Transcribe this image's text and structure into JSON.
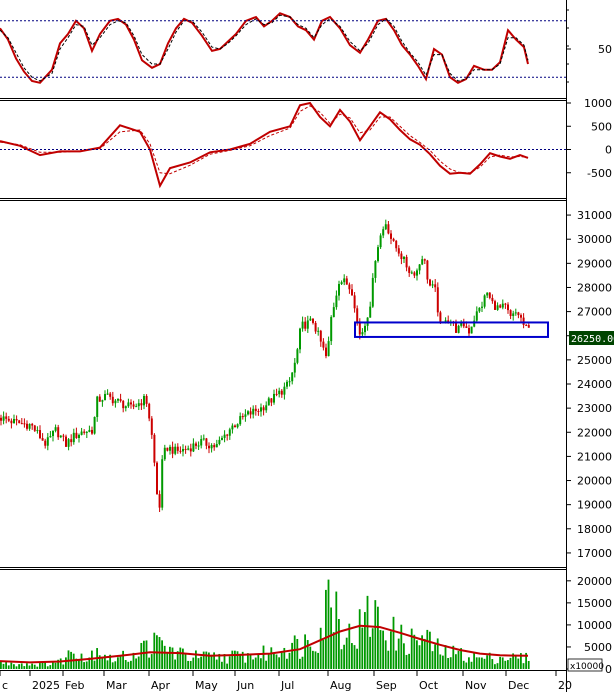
{
  "chart_data": [
    {
      "type": "line",
      "panel": "oscillator",
      "y_ticks": [
        50
      ],
      "ylim": [
        0,
        100
      ],
      "reference_lines": [
        20,
        80
      ],
      "series": [
        {
          "color": "#c00000",
          "style": "solid",
          "x": [
            0,
            8,
            16,
            24,
            32,
            40,
            52,
            60,
            68,
            76,
            84,
            92,
            100,
            110,
            118,
            126,
            134,
            142,
            152,
            160,
            168,
            176,
            184,
            192,
            202,
            212,
            220,
            228,
            236,
            246,
            256,
            264,
            272,
            280,
            290,
            298,
            306,
            314,
            322,
            330,
            340,
            350,
            360,
            368,
            378,
            386,
            394,
            402,
            410,
            418,
            426,
            434,
            442,
            450,
            458,
            466,
            474,
            484,
            492,
            500,
            508,
            516,
            524,
            528
          ],
          "y": [
            72,
            60,
            40,
            26,
            16,
            14,
            28,
            56,
            66,
            80,
            72,
            48,
            66,
            80,
            82,
            76,
            60,
            38,
            30,
            34,
            56,
            72,
            82,
            78,
            64,
            48,
            50,
            58,
            66,
            80,
            84,
            74,
            80,
            88,
            84,
            74,
            70,
            60,
            80,
            84,
            72,
            54,
            46,
            60,
            80,
            82,
            70,
            54,
            44,
            32,
            18,
            50,
            44,
            20,
            14,
            18,
            32,
            28,
            28,
            36,
            70,
            60,
            52,
            34
          ]
        },
        {
          "color": "#000000",
          "style": "dashed",
          "x": [
            0,
            8,
            16,
            24,
            32,
            40,
            52,
            60,
            68,
            76,
            84,
            92,
            100,
            110,
            118,
            126,
            134,
            142,
            152,
            160,
            168,
            176,
            184,
            192,
            202,
            212,
            220,
            228,
            236,
            246,
            256,
            264,
            272,
            280,
            290,
            298,
            306,
            314,
            322,
            330,
            340,
            350,
            360,
            368,
            378,
            386,
            394,
            402,
            410,
            418,
            426,
            434,
            442,
            450,
            458,
            466,
            474,
            484,
            492,
            500,
            508,
            516,
            524,
            528
          ],
          "y": [
            70,
            62,
            46,
            30,
            20,
            16,
            24,
            50,
            62,
            76,
            74,
            54,
            62,
            76,
            80,
            78,
            64,
            44,
            34,
            34,
            50,
            68,
            80,
            80,
            68,
            52,
            50,
            56,
            64,
            76,
            82,
            76,
            78,
            86,
            84,
            76,
            72,
            62,
            76,
            82,
            74,
            58,
            48,
            56,
            76,
            82,
            74,
            58,
            46,
            36,
            22,
            44,
            44,
            24,
            16,
            18,
            28,
            28,
            28,
            34,
            62,
            62,
            54,
            38
          ]
        }
      ]
    },
    {
      "type": "line",
      "panel": "macd",
      "y_ticks": [
        1000,
        500,
        0,
        -500
      ],
      "ylim": [
        -1000,
        1000
      ],
      "reference_lines": [
        0
      ],
      "series": [
        {
          "color": "#c00000",
          "style": "solid",
          "x": [
            0,
            20,
            40,
            60,
            80,
            100,
            120,
            140,
            150,
            160,
            170,
            190,
            210,
            230,
            250,
            270,
            290,
            300,
            310,
            320,
            330,
            340,
            350,
            360,
            370,
            380,
            390,
            400,
            410,
            420,
            430,
            440,
            450,
            460,
            470,
            480,
            490,
            500,
            510,
            520,
            528
          ],
          "y": [
            180,
            80,
            -120,
            -40,
            -40,
            40,
            520,
            380,
            0,
            -780,
            -400,
            -280,
            -60,
            0,
            120,
            380,
            500,
            950,
            1000,
            700,
            500,
            850,
            600,
            200,
            500,
            800,
            650,
            420,
            220,
            100,
            -100,
            -350,
            -520,
            -500,
            -520,
            -320,
            -80,
            -150,
            -200,
            -120,
            -180
          ]
        },
        {
          "color": "#c00000",
          "style": "dashed",
          "x": [
            0,
            20,
            40,
            60,
            80,
            100,
            120,
            140,
            150,
            160,
            170,
            190,
            210,
            230,
            250,
            270,
            290,
            300,
            310,
            320,
            330,
            340,
            350,
            360,
            370,
            380,
            390,
            400,
            410,
            420,
            430,
            440,
            450,
            460,
            470,
            480,
            490,
            500,
            510,
            520,
            528
          ],
          "y": [
            160,
            100,
            -60,
            -60,
            -30,
            20,
            380,
            420,
            120,
            -500,
            -520,
            -340,
            -100,
            -20,
            80,
            300,
            460,
            820,
            940,
            800,
            560,
            760,
            680,
            360,
            420,
            700,
            700,
            500,
            300,
            150,
            -20,
            -250,
            -420,
            -500,
            -500,
            -380,
            -160,
            -120,
            -160,
            -150,
            -170
          ]
        }
      ]
    },
    {
      "type": "candlestick",
      "panel": "price",
      "y_ticks": [
        31000,
        30000,
        29000,
        28000,
        27000,
        26000,
        25000,
        24000,
        23000,
        22000,
        21000,
        20000,
        19000,
        18000,
        17000
      ],
      "ylim": [
        16500,
        31500
      ],
      "last_price_label": "26250.00",
      "support_zone": {
        "x_start": 355,
        "x_end": 548,
        "y_low": 25950,
        "y_high": 26550
      },
      "price_path": {
        "x": [
          0,
          15,
          30,
          45,
          55,
          65,
          72,
          80,
          92,
          96,
          105,
          115,
          130,
          145,
          150,
          155,
          158,
          160,
          165,
          175,
          185,
          200,
          215,
          230,
          245,
          260,
          275,
          288,
          295,
          300,
          312,
          320,
          326,
          330,
          338,
          345,
          352,
          358,
          363,
          370,
          375,
          380,
          385,
          392,
          398,
          404,
          410,
          416,
          422,
          428,
          434,
          440,
          444,
          450,
          456,
          462,
          468,
          474,
          480,
          486,
          490,
          498,
          504,
          510,
          516,
          520,
          524,
          528
        ],
        "close": [
          22600,
          22400,
          22300,
          21500,
          22100,
          21500,
          21800,
          22000,
          22100,
          23300,
          23500,
          23300,
          23000,
          23400,
          22200,
          20000,
          18300,
          20500,
          21400,
          21200,
          21300,
          21600,
          21400,
          22200,
          22700,
          23000,
          23500,
          24000,
          25000,
          26400,
          26600,
          25700,
          25000,
          26700,
          28300,
          28200,
          27800,
          26000,
          26300,
          27500,
          29500,
          30200,
          30700,
          29800,
          29500,
          29000,
          28600,
          28700,
          29400,
          28100,
          27900,
          26200,
          26800,
          26600,
          26200,
          26500,
          26200,
          26800,
          27200,
          27800,
          27400,
          27100,
          27200,
          26700,
          27000,
          26700,
          26300,
          26250
        ]
      }
    },
    {
      "type": "bar",
      "panel": "volume",
      "unit_label": "x10000",
      "y_ticks": [
        20000,
        15000,
        10000,
        5000,
        0
      ],
      "ylim": [
        0,
        22000
      ],
      "bar_color": "#009900",
      "ma_color": "#c00000",
      "volume_path": {
        "x": [
          0,
          20,
          40,
          60,
          76,
          86,
          96,
          110,
          130,
          150,
          160,
          175,
          190,
          210,
          230,
          250,
          270,
          290,
          300,
          310,
          320,
          330,
          340,
          350,
          360,
          370,
          380,
          390,
          400,
          410,
          420,
          430,
          440,
          460,
          480,
          500,
          520,
          528
        ],
        "v": [
          1500,
          1300,
          1200,
          1800,
          5200,
          2000,
          5400,
          2200,
          3200,
          6000,
          5800,
          3800,
          3000,
          2800,
          3000,
          3200,
          3800,
          6000,
          5200,
          8000,
          9000,
          20000,
          11000,
          7000,
          10000,
          13000,
          11000,
          8500,
          7000,
          6500,
          7500,
          6200,
          4000,
          3500,
          2500,
          2800,
          2600,
          2500
        ]
      },
      "ma": {
        "x": [
          0,
          30,
          60,
          90,
          120,
          150,
          180,
          210,
          240,
          270,
          300,
          320,
          340,
          360,
          380,
          400,
          420,
          440,
          460,
          480,
          500,
          528
        ],
        "v": [
          1800,
          1500,
          1700,
          2300,
          3000,
          3800,
          3600,
          3000,
          3200,
          3500,
          4500,
          6500,
          8500,
          9800,
          9500,
          8200,
          6800,
          5500,
          4300,
          3500,
          3100,
          3000
        ]
      }
    }
  ],
  "x_axis": {
    "tick_labels": [
      "c",
      "2025",
      "Feb",
      "Mar",
      "Apr",
      "May",
      "Jun",
      "Jul",
      "Aug",
      "Sep",
      "Oct",
      "Nov",
      "Dec",
      "20"
    ]
  }
}
